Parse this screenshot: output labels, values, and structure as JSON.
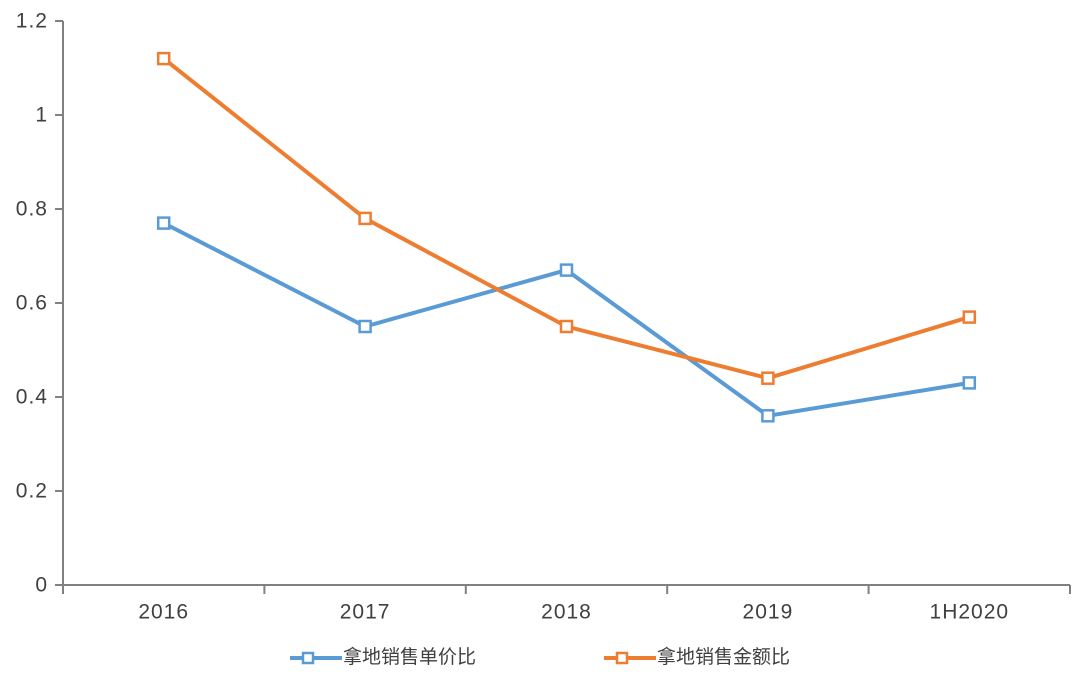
{
  "chart_data": {
    "type": "line",
    "title": "",
    "xlabel": "",
    "ylabel": "",
    "categories": [
      "2016",
      "2017",
      "2018",
      "2019",
      "1H2020"
    ],
    "series": [
      {
        "name": "拿地销售单价比",
        "color": "#5B9BD5",
        "values": [
          0.77,
          0.55,
          0.67,
          0.36,
          0.43
        ]
      },
      {
        "name": "拿地销售金额比",
        "color": "#ED7D31",
        "values": [
          1.12,
          0.78,
          0.55,
          0.44,
          0.57
        ]
      }
    ],
    "ylim": [
      0,
      1.2
    ],
    "ytick_step": 0.2,
    "ytick_labels": [
      "0",
      "0.2",
      "0.4",
      "0.6",
      "0.8",
      "1",
      "1.2"
    ],
    "grid": false,
    "legend_position": "bottom-center",
    "marker": "open-square",
    "axis_color": "#808080",
    "text_color": "#404040",
    "background": "#FFFFFF"
  }
}
